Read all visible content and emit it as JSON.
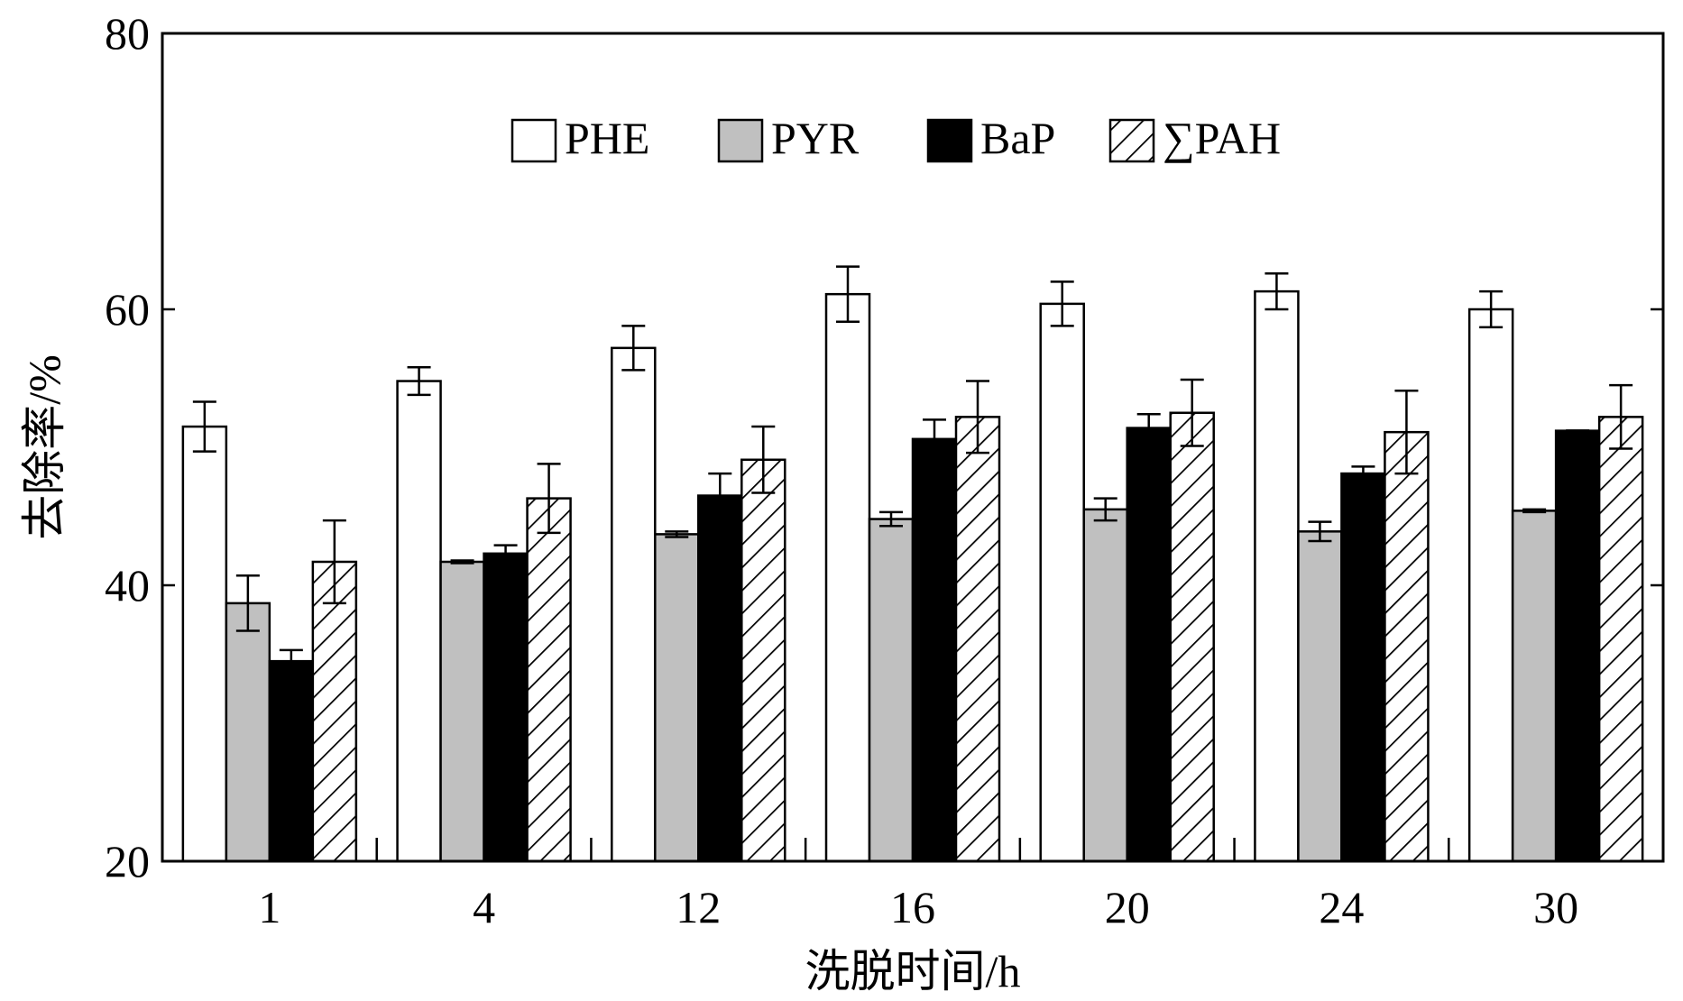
{
  "chart_data": {
    "type": "bar",
    "title": "",
    "xlabel": "洗脱时间/h",
    "ylabel": "去除率/%",
    "categories": [
      "1",
      "4",
      "12",
      "16",
      "20",
      "24",
      "30"
    ],
    "ylim": [
      20,
      80
    ],
    "yticks": [
      20,
      40,
      60,
      80
    ],
    "grid": false,
    "legend_position": "top",
    "series": [
      {
        "name": "PHE",
        "pattern": "white",
        "values": [
          51.5,
          54.8,
          57.2,
          61.1,
          60.4,
          61.3,
          60.0
        ],
        "errors": [
          1.8,
          1.0,
          1.6,
          2.0,
          1.6,
          1.3,
          1.3
        ]
      },
      {
        "name": "PYR",
        "pattern": "gray",
        "values": [
          38.7,
          41.7,
          43.7,
          44.8,
          45.5,
          43.9,
          45.4
        ],
        "errors": [
          2.0,
          0.1,
          0.2,
          0.5,
          0.8,
          0.7,
          0.1
        ]
      },
      {
        "name": "BaP",
        "pattern": "black",
        "values": [
          34.5,
          42.3,
          46.5,
          50.6,
          51.4,
          48.1,
          51.2
        ],
        "errors": [
          0.8,
          0.6,
          1.6,
          1.4,
          1.0,
          0.5,
          0.0
        ]
      },
      {
        "name": "∑PAH",
        "pattern": "hatch",
        "values": [
          41.7,
          46.3,
          49.1,
          52.2,
          52.5,
          51.1,
          52.2
        ],
        "errors": [
          3.0,
          2.5,
          2.4,
          2.6,
          2.4,
          3.0,
          2.3
        ]
      }
    ]
  }
}
